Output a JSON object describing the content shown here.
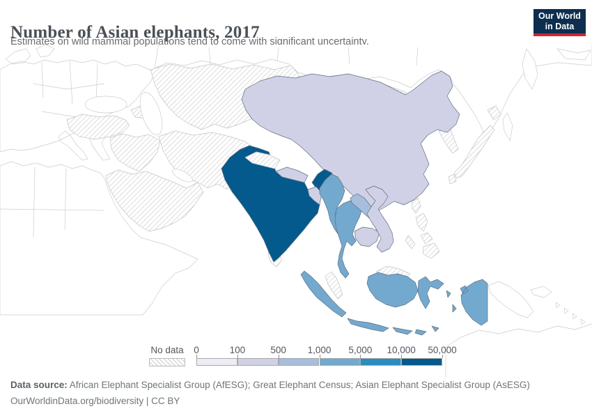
{
  "header": {
    "title": "Number of Asian elephants, 2017",
    "subtitle": "Estimates on wild mammal populations tend to come with significant uncertainty.",
    "logo": {
      "line1": "Our World",
      "line2": "in Data",
      "bg_color": "#0d2e4e",
      "accent_color": "#cf2437"
    }
  },
  "legend": {
    "no_data_label": "No data",
    "tick_labels": [
      "0",
      "100",
      "500",
      "1,000",
      "5,000",
      "10,000",
      "50,000"
    ]
  },
  "footer": {
    "source_label": "Data source:",
    "source_text": " African Elephant Specialist Group (AfESG); Great Elephant Census; Asian Elephant Specialist Group (AsESG)",
    "link_line": "OurWorldinData.org/biodiversity | CC BY"
  },
  "chart_data": {
    "type": "heatmap",
    "subtype": "choropleth map of Asia",
    "title": "Number of Asian elephants, 2017",
    "legend_position": "bottom",
    "bins": [
      {
        "range": "0-100",
        "color": "#eeecf5"
      },
      {
        "range": "100-500",
        "color": "#d0d1e6"
      },
      {
        "range": "500-1,000",
        "color": "#a6bddb"
      },
      {
        "range": "1,000-5,000",
        "color": "#74a9cf"
      },
      {
        "range": "5,000-10,000",
        "color": "#2b8cbe"
      },
      {
        "range": "10,000-50,000",
        "color": "#045a8d"
      },
      {
        "range": "No data",
        "color": "hatched"
      }
    ],
    "entities": [
      {
        "id": "india",
        "name": "India",
        "bin": "10,000-50,000"
      },
      {
        "id": "china",
        "name": "China",
        "bin": "100-500"
      },
      {
        "id": "nepal",
        "name": "Nepal",
        "bin": "100-500"
      },
      {
        "id": "bangladesh",
        "name": "Bangladesh",
        "bin": "100-500"
      },
      {
        "id": "myanmar",
        "name": "Myanmar",
        "bin": "1,000-5,000"
      },
      {
        "id": "thailand",
        "name": "Thailand",
        "bin": "1,000-5,000"
      },
      {
        "id": "laos",
        "name": "Laos",
        "bin": "500-1,000"
      },
      {
        "id": "cambodia",
        "name": "Cambodia",
        "bin": "100-500"
      },
      {
        "id": "vietnam",
        "name": "Vietnam",
        "bin": "100-500"
      },
      {
        "id": "indonesia",
        "name": "Indonesia",
        "bin": "1,000-5,000"
      },
      {
        "id": "sri-lanka",
        "name": "Sri Lanka",
        "bin": "No data"
      },
      {
        "id": "malaysia",
        "name": "Malaysia",
        "bin": "No data"
      },
      {
        "id": "philippines",
        "name": "Philippines",
        "bin": "No data"
      },
      {
        "id": "taiwan",
        "name": "Taiwan",
        "bin": "No data"
      },
      {
        "id": "japan",
        "name": "Japan",
        "bin": "No data"
      },
      {
        "id": "koreas",
        "name": "North and South Korea",
        "bin": "No data"
      },
      {
        "id": "mongolia",
        "name": "Mongolia",
        "bin": "No data"
      },
      {
        "id": "central-asia",
        "name": "Central Asia (Kazakhstan and neighbours)",
        "bin": "No data"
      },
      {
        "id": "iran-afg-pak",
        "name": "Iran, Afghanistan and Pakistan",
        "bin": "No data"
      },
      {
        "id": "middle-east",
        "name": "Iraq and the Levant",
        "bin": "No data"
      },
      {
        "id": "arabia",
        "name": "Arabian Peninsula",
        "bin": "No data"
      },
      {
        "id": "turkey",
        "name": "Turkey",
        "bin": "No data"
      },
      {
        "id": "caucasus",
        "name": "Caucasus",
        "bin": "No data"
      },
      {
        "id": "kashmir",
        "name": "Kashmir region",
        "bin": "No data"
      }
    ]
  }
}
